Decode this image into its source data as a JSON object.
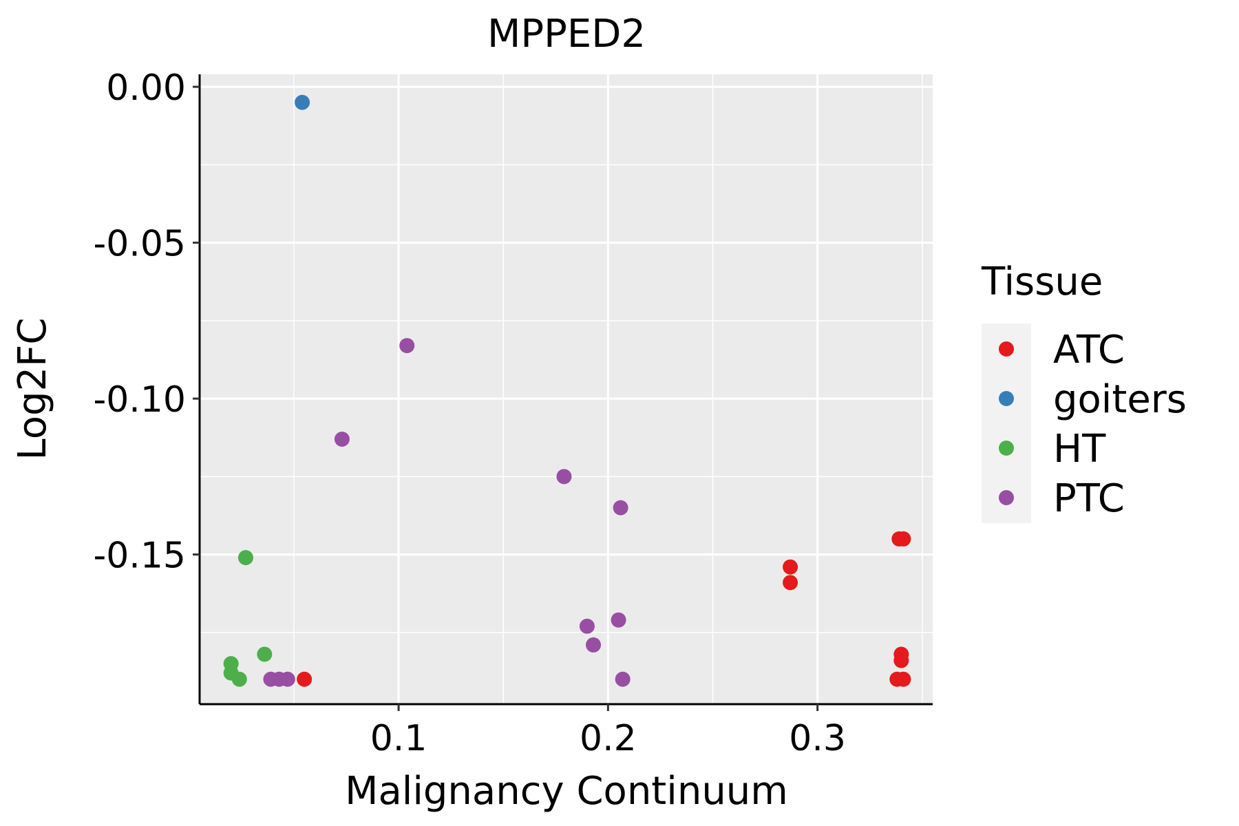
{
  "chart_data": {
    "type": "scatter",
    "title": "MPPED2",
    "xlabel": "Malignancy Continuum",
    "ylabel": "Log2FC",
    "xlim": [
      0.005,
      0.355
    ],
    "ylim": [
      -0.198,
      0.004
    ],
    "x_ticks": [
      0.1,
      0.2,
      0.3
    ],
    "x_tick_labels": [
      "0.1",
      "0.2",
      "0.3"
    ],
    "x_minor_ticks": [
      0.05,
      0.15,
      0.25,
      0.35
    ],
    "y_ticks": [
      0.0,
      -0.05,
      -0.1,
      -0.15
    ],
    "y_tick_labels": [
      "0.00",
      "-0.05",
      "-0.10",
      "-0.15"
    ],
    "y_minor_ticks": [
      -0.025,
      -0.075,
      -0.125,
      -0.175
    ],
    "grid": true,
    "legend": {
      "title": "Tissue",
      "position": "right",
      "entries": [
        {
          "label": "ATC",
          "color": "#E41A1C"
        },
        {
          "label": "goiters",
          "color": "#377EB8"
        },
        {
          "label": "HT",
          "color": "#4DAF4A"
        },
        {
          "label": "PTC",
          "color": "#984EA3"
        }
      ]
    },
    "series": [
      {
        "name": "ATC",
        "color": "#E41A1C",
        "points": [
          {
            "x": 0.055,
            "y": -0.19
          },
          {
            "x": 0.287,
            "y": -0.154
          },
          {
            "x": 0.287,
            "y": -0.159
          },
          {
            "x": 0.339,
            "y": -0.145
          },
          {
            "x": 0.341,
            "y": -0.145
          },
          {
            "x": 0.34,
            "y": -0.182
          },
          {
            "x": 0.34,
            "y": -0.184
          },
          {
            "x": 0.338,
            "y": -0.19
          },
          {
            "x": 0.341,
            "y": -0.19
          }
        ]
      },
      {
        "name": "goiters",
        "color": "#377EB8",
        "points": [
          {
            "x": 0.054,
            "y": -0.005
          }
        ]
      },
      {
        "name": "HT",
        "color": "#4DAF4A",
        "points": [
          {
            "x": 0.027,
            "y": -0.151
          },
          {
            "x": 0.036,
            "y": -0.182
          },
          {
            "x": 0.02,
            "y": -0.185
          },
          {
            "x": 0.02,
            "y": -0.188
          },
          {
            "x": 0.024,
            "y": -0.19
          }
        ]
      },
      {
        "name": "PTC",
        "color": "#984EA3",
        "points": [
          {
            "x": 0.104,
            "y": -0.083
          },
          {
            "x": 0.073,
            "y": -0.113
          },
          {
            "x": 0.179,
            "y": -0.125
          },
          {
            "x": 0.206,
            "y": -0.135
          },
          {
            "x": 0.205,
            "y": -0.171
          },
          {
            "x": 0.19,
            "y": -0.173
          },
          {
            "x": 0.193,
            "y": -0.179
          },
          {
            "x": 0.207,
            "y": -0.19
          },
          {
            "x": 0.039,
            "y": -0.19
          },
          {
            "x": 0.043,
            "y": -0.19
          },
          {
            "x": 0.047,
            "y": -0.19
          }
        ]
      }
    ]
  }
}
